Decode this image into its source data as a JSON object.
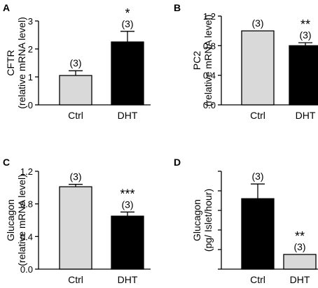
{
  "chart_data": [
    {
      "panel": "A",
      "type": "bar",
      "ylabel_line1": "CFTR",
      "ylabel_line2": "(relative mRNA level)",
      "categories": [
        "Ctrl",
        "DHT"
      ],
      "values": [
        1.05,
        2.25
      ],
      "errors": [
        0.17,
        0.38
      ],
      "bar_colors": [
        "#d9d9d9",
        "#000000"
      ],
      "n_labels": [
        "(3)",
        "(3)"
      ],
      "significance": [
        "",
        "*"
      ],
      "ylim": [
        0,
        3
      ],
      "yticks": [
        0,
        1,
        2,
        3
      ],
      "ytick_labels": [
        "0",
        "1",
        "2",
        "3"
      ]
    },
    {
      "panel": "B",
      "type": "bar",
      "ylabel_line1": "PC2",
      "ylabel_line2": "(relative mRNA level)",
      "categories": [
        "Ctrl",
        "DHT"
      ],
      "values": [
        1.0,
        0.8
      ],
      "errors": [
        0.0,
        0.04
      ],
      "bar_colors": [
        "#d9d9d9",
        "#000000"
      ],
      "n_labels": [
        "(3)",
        "(3)"
      ],
      "significance": [
        "",
        "**"
      ],
      "ylim": [
        0,
        1.2
      ],
      "yticks": [
        0,
        0.4,
        0.8,
        1.2
      ],
      "ytick_labels": [
        "0.0",
        "0.4",
        "0.8",
        "1.2"
      ]
    },
    {
      "panel": "C",
      "type": "bar",
      "ylabel_line1": "Glucagon",
      "ylabel_line2": "(relative mRNA level)",
      "categories": [
        "Ctrl",
        "DHT"
      ],
      "values": [
        1.01,
        0.65
      ],
      "errors": [
        0.03,
        0.05
      ],
      "bar_colors": [
        "#d9d9d9",
        "#000000"
      ],
      "n_labels": [
        "(3)",
        "(3)"
      ],
      "significance": [
        "",
        "***"
      ],
      "ylim": [
        0,
        1.2
      ],
      "yticks": [
        0,
        0.4,
        0.8,
        1.2
      ],
      "ytick_labels": [
        "0.0",
        "0.4",
        "0.8",
        "1.2"
      ]
    },
    {
      "panel": "D",
      "type": "bar",
      "ylabel_line1": "Glucagon",
      "ylabel_line2": "(pg/ Islet/hour)",
      "categories": [
        "Ctrl",
        "DHT"
      ],
      "values": [
        3.6,
        0.75
      ],
      "errors": [
        0.75,
        0.0
      ],
      "bar_colors": [
        "#000000",
        "#d9d9d9"
      ],
      "n_labels": [
        "(3)",
        "(3)"
      ],
      "significance": [
        "",
        "**"
      ],
      "ylim": [
        0,
        5
      ],
      "yticks": [
        0,
        1,
        2,
        3,
        4,
        5
      ],
      "ytick_labels": [
        "",
        "",
        "",
        "",
        "",
        ""
      ]
    }
  ]
}
